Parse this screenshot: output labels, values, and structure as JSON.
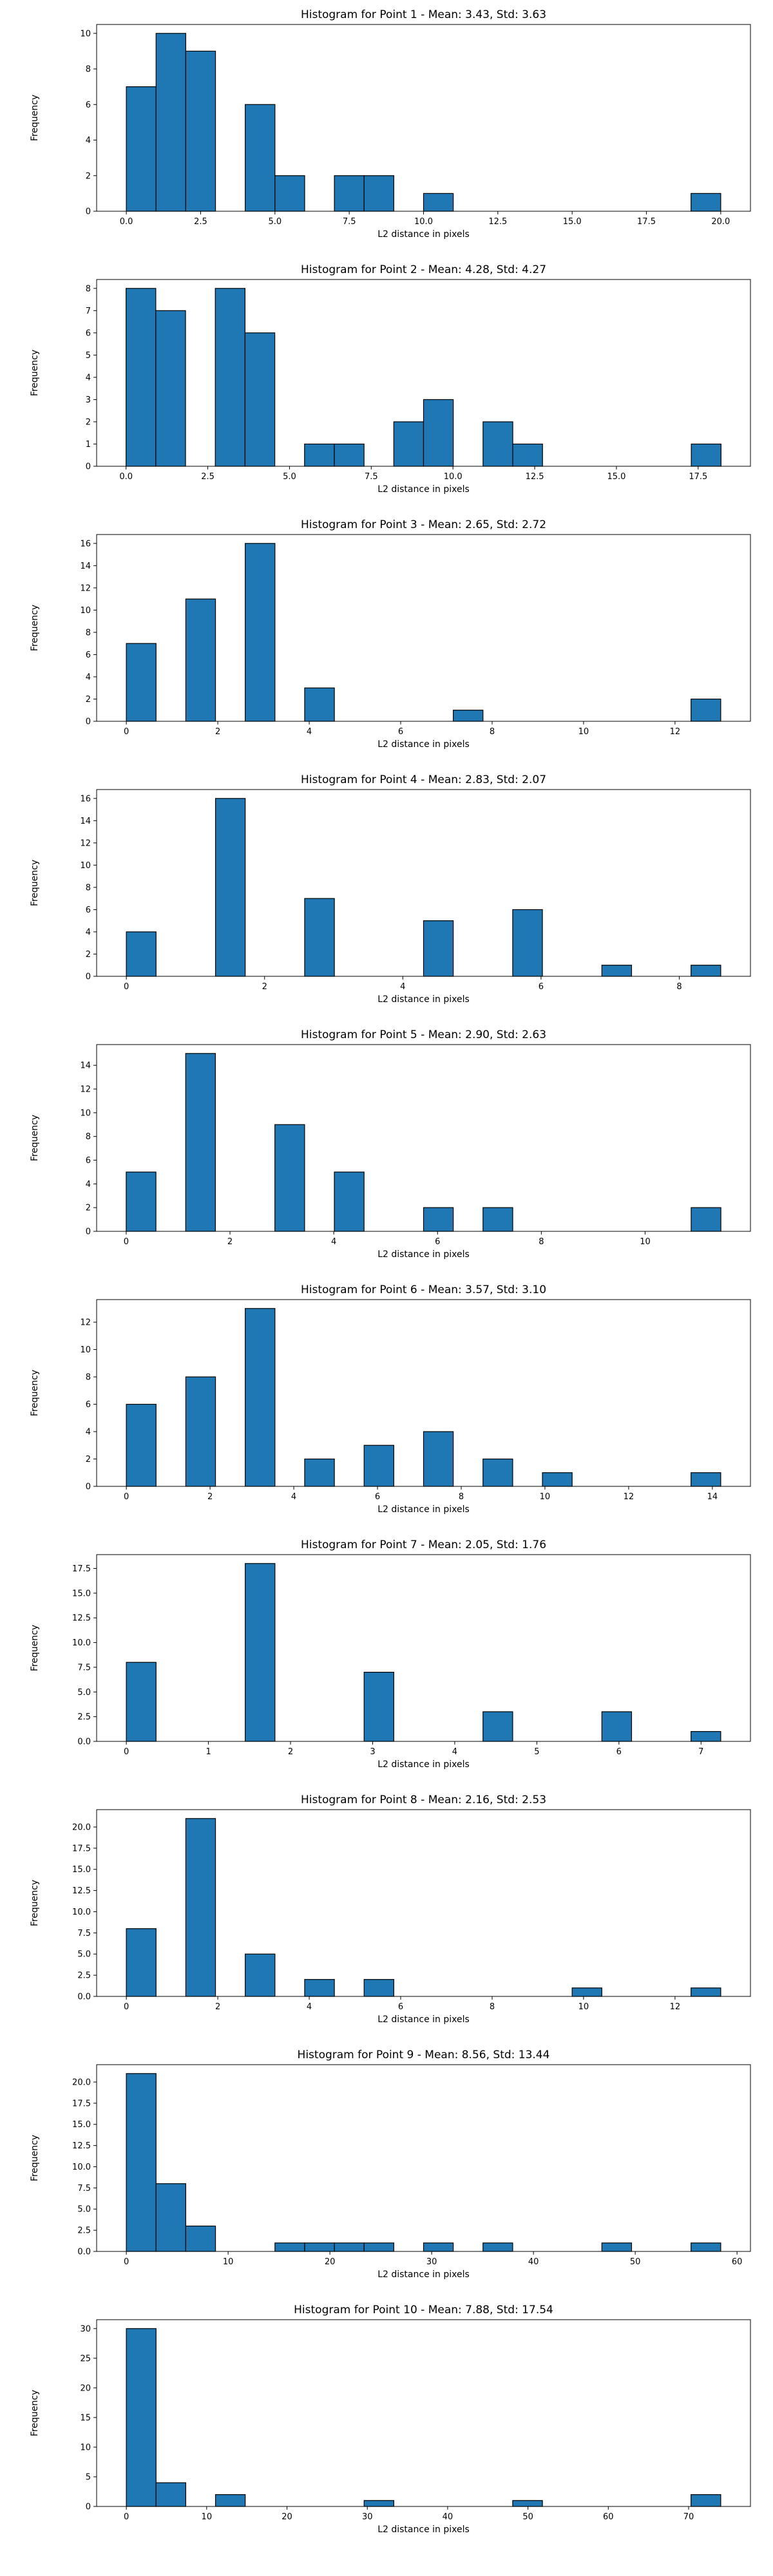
{
  "chart_data": [
    {
      "type": "bar",
      "title": "Histogram for Point 1 - Mean: 3.43, Std: 3.63",
      "xlabel": "L2 distance in pixels",
      "ylabel": "Frequency",
      "xlim": [
        -1.0,
        21.0
      ],
      "ylim": [
        0,
        10.5
      ],
      "xticks": [
        0.0,
        2.5,
        5.0,
        7.5,
        10.0,
        12.5,
        15.0,
        17.5,
        20.0
      ],
      "xtick_labels": [
        "0.0",
        "2.5",
        "5.0",
        "7.5",
        "10.0",
        "12.5",
        "15.0",
        "17.5",
        "20.0"
      ],
      "yticks": [
        0,
        2,
        4,
        6,
        8,
        10
      ],
      "ytick_labels": [
        "0",
        "2",
        "4",
        "6",
        "8",
        "10"
      ],
      "bin_edges": [
        0.0,
        1.0,
        2.0,
        3.0,
        4.0,
        5.0,
        6.0,
        7.0,
        8.0,
        9.0,
        10.0,
        11.0,
        12.0,
        13.0,
        14.0,
        15.0,
        16.0,
        17.0,
        18.0,
        19.0,
        20.0
      ],
      "values": [
        7,
        10,
        9,
        0,
        6,
        2,
        0,
        2,
        2,
        0,
        1,
        0,
        0,
        0,
        0,
        0,
        0,
        0,
        0,
        1
      ],
      "color": "#1f77b4",
      "edgecolor": "#000000",
      "grid": false
    },
    {
      "type": "bar",
      "title": "Histogram for Point 2 - Mean: 4.28, Std: 4.27",
      "xlabel": "L2 distance in pixels",
      "ylabel": "Frequency",
      "xlim": [
        -0.9,
        19.1
      ],
      "ylim": [
        0,
        8.4
      ],
      "xticks": [
        0.0,
        2.5,
        5.0,
        7.5,
        10.0,
        12.5,
        15.0,
        17.5
      ],
      "xtick_labels": [
        "0.0",
        "2.5",
        "5.0",
        "7.5",
        "10.0",
        "12.5",
        "15.0",
        "17.5"
      ],
      "yticks": [
        0,
        1,
        2,
        3,
        4,
        5,
        6,
        7,
        8
      ],
      "ytick_labels": [
        "0",
        "1",
        "2",
        "3",
        "4",
        "5",
        "6",
        "7",
        "8"
      ],
      "bin_edges": [
        0.0,
        0.91,
        1.82,
        2.73,
        3.64,
        4.55,
        5.46,
        6.37,
        7.28,
        8.19,
        9.1,
        10.01,
        10.92,
        11.83,
        12.74,
        13.65,
        14.56,
        15.47,
        16.38,
        17.29,
        18.2
      ],
      "values": [
        8,
        7,
        0,
        8,
        6,
        0,
        1,
        1,
        0,
        2,
        3,
        0,
        2,
        1,
        0,
        0,
        0,
        0,
        0,
        1
      ],
      "color": "#1f77b4",
      "edgecolor": "#000000",
      "grid": false
    },
    {
      "type": "bar",
      "title": "Histogram for Point 3 - Mean: 2.65, Std: 2.72",
      "xlabel": "L2 distance in pixels",
      "ylabel": "Frequency",
      "xlim": [
        -0.65,
        13.65
      ],
      "ylim": [
        0,
        16.8
      ],
      "xticks": [
        0,
        2,
        4,
        6,
        8,
        10,
        12
      ],
      "xtick_labels": [
        "0",
        "2",
        "4",
        "6",
        "8",
        "10",
        "12"
      ],
      "yticks": [
        0,
        2,
        4,
        6,
        8,
        10,
        12,
        14,
        16
      ],
      "ytick_labels": [
        "0",
        "2",
        "4",
        "6",
        "8",
        "10",
        "12",
        "14",
        "16"
      ],
      "bin_edges": [
        0.0,
        0.65,
        1.3,
        1.95,
        2.6,
        3.25,
        3.9,
        4.55,
        5.2,
        5.85,
        6.5,
        7.15,
        7.8,
        8.45,
        9.1,
        9.75,
        10.4,
        11.05,
        11.7,
        12.35,
        13.0
      ],
      "values": [
        7,
        0,
        11,
        0,
        16,
        0,
        3,
        0,
        0,
        0,
        0,
        1,
        0,
        0,
        0,
        0,
        0,
        0,
        0,
        2
      ],
      "color": "#1f77b4",
      "edgecolor": "#000000",
      "grid": false
    },
    {
      "type": "bar",
      "title": "Histogram for Point 4 - Mean: 2.83, Std: 2.07",
      "xlabel": "L2 distance in pixels",
      "ylabel": "Frequency",
      "xlim": [
        -0.43,
        9.03
      ],
      "ylim": [
        0,
        16.8
      ],
      "xticks": [
        0,
        2,
        4,
        6,
        8
      ],
      "xtick_labels": [
        "0",
        "2",
        "4",
        "6",
        "8"
      ],
      "yticks": [
        0,
        2,
        4,
        6,
        8,
        10,
        12,
        14,
        16
      ],
      "ytick_labels": [
        "0",
        "2",
        "4",
        "6",
        "8",
        "10",
        "12",
        "14",
        "16"
      ],
      "bin_edges": [
        0.0,
        0.43,
        0.86,
        1.29,
        1.72,
        2.15,
        2.58,
        3.01,
        3.44,
        3.87,
        4.3,
        4.73,
        5.16,
        5.59,
        6.02,
        6.45,
        6.88,
        7.31,
        7.74,
        8.17,
        8.6
      ],
      "values": [
        4,
        0,
        0,
        16,
        0,
        0,
        7,
        0,
        0,
        0,
        5,
        0,
        0,
        6,
        0,
        0,
        1,
        0,
        0,
        1
      ],
      "color": "#1f77b4",
      "edgecolor": "#000000",
      "grid": false
    },
    {
      "type": "bar",
      "title": "Histogram for Point 5 - Mean: 2.90, Std: 2.63",
      "xlabel": "L2 distance in pixels",
      "ylabel": "Frequency",
      "xlim": [
        -0.57,
        12.03
      ],
      "ylim": [
        0,
        15.75
      ],
      "xticks": [
        0,
        2,
        4,
        6,
        8,
        10
      ],
      "xtick_labels": [
        "0",
        "2",
        "4",
        "6",
        "8",
        "10"
      ],
      "yticks": [
        0,
        2,
        4,
        6,
        8,
        10,
        12,
        14
      ],
      "ytick_labels": [
        "0",
        "2",
        "4",
        "6",
        "8",
        "10",
        "12",
        "14"
      ],
      "bin_edges": [
        0.0,
        0.573,
        1.146,
        1.719,
        2.292,
        2.865,
        3.438,
        4.011,
        4.584,
        5.157,
        5.73,
        6.303,
        6.876,
        7.449,
        8.022,
        8.595,
        9.168,
        9.741,
        10.314,
        10.887,
        11.46
      ],
      "values": [
        5,
        0,
        15,
        0,
        0,
        9,
        0,
        5,
        0,
        0,
        2,
        0,
        2,
        0,
        0,
        0,
        0,
        0,
        0,
        2
      ],
      "color": "#1f77b4",
      "edgecolor": "#000000",
      "grid": false
    },
    {
      "type": "bar",
      "title": "Histogram for Point 6 - Mean: 3.57, Std: 3.10",
      "xlabel": "L2 distance in pixels",
      "ylabel": "Frequency",
      "xlim": [
        -0.71,
        14.91
      ],
      "ylim": [
        0,
        13.65
      ],
      "xticks": [
        0,
        2,
        4,
        6,
        8,
        10,
        12,
        14
      ],
      "xtick_labels": [
        "0",
        "2",
        "4",
        "6",
        "8",
        "10",
        "12",
        "14"
      ],
      "yticks": [
        0,
        2,
        4,
        6,
        8,
        10,
        12
      ],
      "ytick_labels": [
        "0",
        "2",
        "4",
        "6",
        "8",
        "10",
        "12"
      ],
      "bin_edges": [
        0.0,
        0.71,
        1.42,
        2.13,
        2.84,
        3.55,
        4.26,
        4.97,
        5.68,
        6.39,
        7.1,
        7.81,
        8.52,
        9.23,
        9.94,
        10.65,
        11.36,
        12.07,
        12.78,
        13.49,
        14.2
      ],
      "values": [
        6,
        0,
        8,
        0,
        13,
        0,
        2,
        0,
        3,
        0,
        4,
        0,
        2,
        0,
        1,
        0,
        0,
        0,
        0,
        1
      ],
      "color": "#1f77b4",
      "edgecolor": "#000000",
      "grid": false
    },
    {
      "type": "bar",
      "title": "Histogram for Point 7 - Mean: 2.05, Std: 1.76",
      "xlabel": "L2 distance in pixels",
      "ylabel": "Frequency",
      "xlim": [
        -0.362,
        7.602
      ],
      "ylim": [
        0,
        18.9
      ],
      "xticks": [
        0,
        1,
        2,
        3,
        4,
        5,
        6,
        7
      ],
      "xtick_labels": [
        "0",
        "1",
        "2",
        "3",
        "4",
        "5",
        "6",
        "7"
      ],
      "yticks": [
        0.0,
        2.5,
        5.0,
        7.5,
        10.0,
        12.5,
        15.0,
        17.5
      ],
      "ytick_labels": [
        "0.0",
        "2.5",
        "5.0",
        "7.5",
        "10.0",
        "12.5",
        "15.0",
        "17.5"
      ],
      "bin_edges": [
        0.0,
        0.362,
        0.724,
        1.086,
        1.448,
        1.81,
        2.172,
        2.534,
        2.896,
        3.258,
        3.62,
        3.982,
        4.344,
        4.706,
        5.068,
        5.43,
        5.792,
        6.154,
        6.516,
        6.878,
        7.24
      ],
      "values": [
        8,
        0,
        0,
        0,
        18,
        0,
        0,
        0,
        7,
        0,
        0,
        0,
        3,
        0,
        0,
        0,
        3,
        0,
        0,
        1
      ],
      "color": "#1f77b4",
      "edgecolor": "#000000",
      "grid": false
    },
    {
      "type": "bar",
      "title": "Histogram for Point 8 - Mean: 2.16, Std: 2.53",
      "xlabel": "L2 distance in pixels",
      "ylabel": "Frequency",
      "xlim": [
        -0.65,
        13.65
      ],
      "ylim": [
        0,
        22.05
      ],
      "xticks": [
        0,
        2,
        4,
        6,
        8,
        10,
        12
      ],
      "xtick_labels": [
        "0",
        "2",
        "4",
        "6",
        "8",
        "10",
        "12"
      ],
      "yticks": [
        0.0,
        2.5,
        5.0,
        7.5,
        10.0,
        12.5,
        15.0,
        17.5,
        20.0
      ],
      "ytick_labels": [
        "0.0",
        "2.5",
        "5.0",
        "7.5",
        "10.0",
        "12.5",
        "15.0",
        "17.5",
        "20.0"
      ],
      "bin_edges": [
        0.0,
        0.65,
        1.3,
        1.95,
        2.6,
        3.25,
        3.9,
        4.55,
        5.2,
        5.85,
        6.5,
        7.15,
        7.8,
        8.45,
        9.1,
        9.75,
        10.4,
        11.05,
        11.7,
        12.35,
        13.0
      ],
      "values": [
        8,
        0,
        21,
        0,
        5,
        0,
        2,
        0,
        2,
        0,
        0,
        0,
        0,
        0,
        0,
        1,
        0,
        0,
        0,
        1
      ],
      "color": "#1f77b4",
      "edgecolor": "#000000",
      "grid": false
    },
    {
      "type": "bar",
      "title": "Histogram for Point 9 - Mean: 8.56, Std: 13.44",
      "xlabel": "L2 distance in pixels",
      "ylabel": "Frequency",
      "xlim": [
        -2.92,
        61.32
      ],
      "ylim": [
        0,
        22.05
      ],
      "xticks": [
        0,
        10,
        20,
        30,
        40,
        50,
        60
      ],
      "xtick_labels": [
        "0",
        "10",
        "20",
        "30",
        "40",
        "50",
        "60"
      ],
      "yticks": [
        0.0,
        2.5,
        5.0,
        7.5,
        10.0,
        12.5,
        15.0,
        17.5,
        20.0
      ],
      "ytick_labels": [
        "0.0",
        "2.5",
        "5.0",
        "7.5",
        "10.0",
        "12.5",
        "15.0",
        "17.5",
        "20.0"
      ],
      "bin_edges": [
        0.0,
        2.92,
        5.84,
        8.76,
        11.68,
        14.6,
        17.52,
        20.44,
        23.36,
        26.28,
        29.2,
        32.12,
        35.04,
        37.96,
        40.88,
        43.8,
        46.72,
        49.64,
        52.56,
        55.48,
        58.4
      ],
      "values": [
        21,
        8,
        3,
        0,
        0,
        1,
        1,
        1,
        1,
        0,
        1,
        0,
        1,
        0,
        0,
        0,
        1,
        0,
        0,
        1
      ],
      "color": "#1f77b4",
      "edgecolor": "#000000",
      "grid": false
    },
    {
      "type": "bar",
      "title": "Histogram for Point 10 - Mean: 7.88, Std: 17.54",
      "xlabel": "L2 distance in pixels",
      "ylabel": "Frequency",
      "xlim": [
        -3.7,
        77.7
      ],
      "ylim": [
        0,
        31.5
      ],
      "xticks": [
        0,
        10,
        20,
        30,
        40,
        50,
        60,
        70
      ],
      "xtick_labels": [
        "0",
        "10",
        "20",
        "30",
        "40",
        "50",
        "60",
        "70"
      ],
      "yticks": [
        0,
        5,
        10,
        15,
        20,
        25,
        30
      ],
      "ytick_labels": [
        "0",
        "5",
        "10",
        "15",
        "20",
        "25",
        "30"
      ],
      "bin_edges": [
        0.0,
        3.7,
        7.4,
        11.1,
        14.8,
        18.5,
        22.2,
        25.9,
        29.6,
        33.3,
        37.0,
        40.7,
        44.4,
        48.1,
        51.8,
        55.5,
        59.2,
        62.9,
        66.6,
        70.3,
        74.0
      ],
      "values": [
        30,
        4,
        0,
        2,
        0,
        0,
        0,
        0,
        1,
        0,
        0,
        0,
        0,
        1,
        0,
        0,
        0,
        0,
        0,
        2
      ],
      "color": "#1f77b4",
      "edgecolor": "#000000",
      "grid": false
    }
  ]
}
